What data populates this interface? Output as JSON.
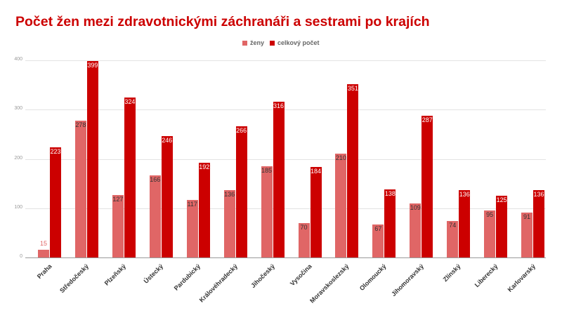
{
  "chart_data": {
    "type": "bar",
    "title": "Počet žen mezi zdravotnickými záchranáři a sestrami po krajích",
    "xlabel": "",
    "ylabel": "",
    "ylim": [
      0,
      400
    ],
    "yticks": [
      0,
      100,
      200,
      300,
      400
    ],
    "grid": true,
    "legend_position": "top",
    "categories": [
      "Praha",
      "Středočeský",
      "Plzeňský",
      "Ústecký",
      "Pardubický",
      "Královéhradecký",
      "Jihočeský",
      "Vysočina",
      "Moravskoslezský",
      "Olomoucký",
      "Jihomoravský",
      "Zlínský",
      "Liberecký",
      "Karlovarský"
    ],
    "series": [
      {
        "name": "ženy",
        "color": "#e06666",
        "values": [
          15,
          278,
          127,
          166,
          117,
          136,
          185,
          70,
          210,
          67,
          109,
          74,
          95,
          91
        ]
      },
      {
        "name": "celkový počet",
        "color": "#cc0000",
        "values": [
          223,
          399,
          324,
          246,
          192,
          266,
          316,
          184,
          351,
          138,
          287,
          136,
          125,
          136
        ]
      }
    ]
  },
  "legend": {
    "items": [
      {
        "label": "ženy",
        "color": "#e06666"
      },
      {
        "label": "celkový počet",
        "color": "#cc0000"
      }
    ]
  }
}
